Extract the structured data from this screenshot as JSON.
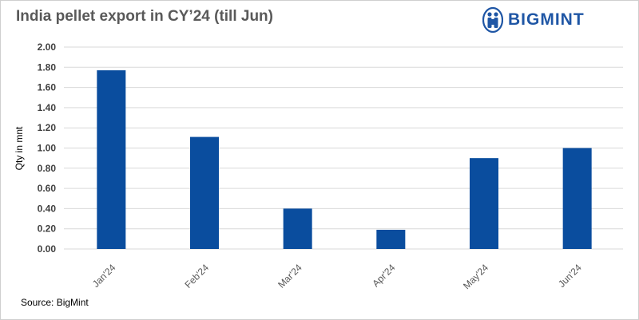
{
  "header": {
    "title": "India pellet export in CY’24 (till Jun)",
    "logo_text": "BIGMINT"
  },
  "footer": {
    "source": "Source: BigMint"
  },
  "colors": {
    "bar": "#0a4d9e",
    "grid": "#d9d9d9",
    "title": "#595959",
    "logo": "#1f56a5"
  },
  "chart_data": {
    "type": "bar",
    "title": "India pellet export in CY’24 (till Jun)",
    "xlabel": "",
    "ylabel": "Qty in mnt",
    "categories": [
      "Jan'24",
      "Feb'24",
      "Mar'24",
      "Apr'24",
      "May'24",
      "Jun'24"
    ],
    "values": [
      1.77,
      1.11,
      0.4,
      0.19,
      0.9,
      1.0
    ],
    "ylim": [
      0,
      2.0
    ],
    "yticks": [
      "0.00",
      "0.20",
      "0.40",
      "0.60",
      "0.80",
      "1.00",
      "1.20",
      "1.40",
      "1.60",
      "1.80",
      "2.00"
    ],
    "grid": true,
    "legend": "none"
  }
}
